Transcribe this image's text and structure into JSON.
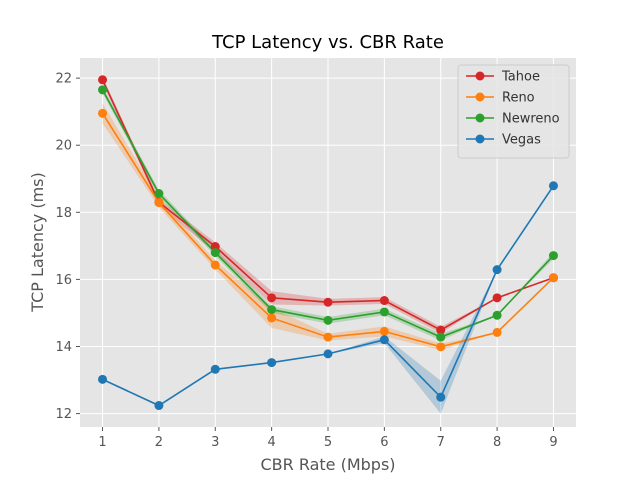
{
  "chart_data": {
    "type": "line",
    "title": "TCP Latency vs. CBR Rate",
    "xlabel": "CBR Rate (Mbps)",
    "ylabel": "TCP Latency (ms)",
    "x": [
      1,
      2,
      3,
      4,
      5,
      6,
      7,
      8,
      9
    ],
    "xlim": [
      0.6,
      9.4
    ],
    "ylim": [
      11.6,
      22.6
    ],
    "xticks": [
      1,
      2,
      3,
      4,
      5,
      6,
      7,
      8,
      9
    ],
    "yticks": [
      12,
      14,
      16,
      18,
      20,
      22
    ],
    "grid": true,
    "legend_position": "top-right",
    "series": [
      {
        "name": "Tahoe",
        "color": "#d62728",
        "values": [
          21.95,
          18.3,
          16.98,
          15.45,
          15.32,
          15.37,
          14.49,
          15.45,
          16.05
        ],
        "band_lower": [
          21.85,
          18.2,
          16.8,
          15.25,
          15.22,
          15.27,
          14.39,
          15.45,
          16.05
        ],
        "band_upper": [
          22.05,
          18.4,
          17.1,
          15.65,
          15.42,
          15.47,
          14.59,
          15.45,
          16.05
        ]
      },
      {
        "name": "Reno",
        "color": "#ff7f0e",
        "values": [
          20.95,
          18.29,
          16.43,
          14.85,
          14.28,
          14.45,
          13.99,
          14.42,
          16.05
        ],
        "band_lower": [
          20.65,
          18.15,
          16.3,
          14.55,
          14.18,
          14.3,
          13.89,
          14.42,
          16.05
        ],
        "band_upper": [
          21.25,
          18.43,
          16.56,
          15.15,
          14.38,
          14.6,
          14.09,
          14.42,
          16.05
        ]
      },
      {
        "name": "Newreno",
        "color": "#2ca02c",
        "values": [
          21.65,
          18.56,
          16.8,
          15.1,
          14.78,
          15.03,
          14.28,
          14.93,
          16.71
        ],
        "band_lower": [
          21.55,
          18.46,
          16.7,
          15.0,
          14.68,
          14.93,
          14.18,
          14.93,
          16.61
        ],
        "band_upper": [
          21.75,
          18.66,
          16.9,
          15.2,
          14.88,
          15.13,
          14.38,
          14.93,
          16.81
        ]
      },
      {
        "name": "Vegas",
        "color": "#1f77b4",
        "values": [
          13.02,
          12.24,
          13.32,
          13.52,
          13.78,
          14.2,
          12.49,
          16.29,
          18.79
        ],
        "band_lower": [
          13.02,
          12.24,
          13.32,
          13.52,
          13.78,
          14.1,
          12.0,
          16.29,
          18.79
        ],
        "band_upper": [
          13.02,
          12.24,
          13.32,
          13.52,
          13.78,
          14.3,
          12.98,
          16.29,
          18.79
        ]
      }
    ]
  }
}
